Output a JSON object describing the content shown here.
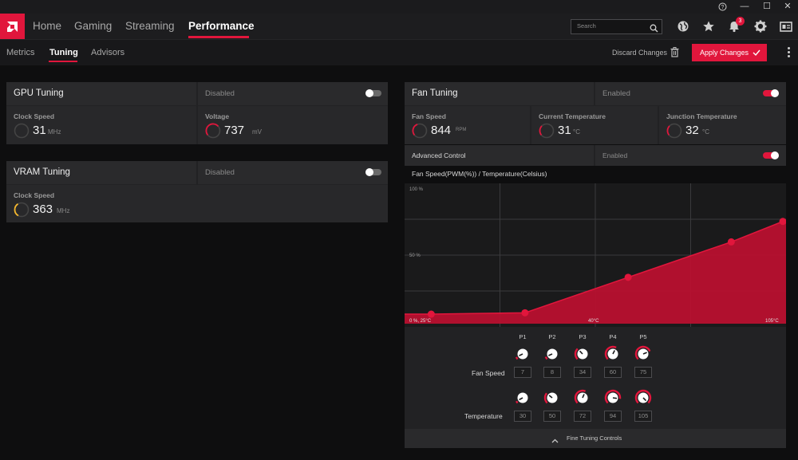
{
  "window": {
    "help_icon": "help-icon",
    "minimize": "—",
    "maximize": "☐",
    "close": "✕"
  },
  "nav": {
    "tabs": [
      {
        "label": "Home"
      },
      {
        "label": "Gaming"
      },
      {
        "label": "Streaming"
      },
      {
        "label": "Performance"
      }
    ],
    "search_placeholder": "Search",
    "notification_count": "3"
  },
  "subnav": {
    "tabs": [
      {
        "label": "Metrics"
      },
      {
        "label": "Tuning"
      },
      {
        "label": "Advisors"
      }
    ],
    "discard_label": "Discard Changes",
    "apply_label": "Apply Changes"
  },
  "gpu_tuning": {
    "title": "GPU Tuning",
    "status": "Disabled",
    "clock_label": "Clock Speed",
    "clock_value": "31",
    "clock_unit": "MHz",
    "voltage_label": "Voltage",
    "voltage_value": "737",
    "voltage_unit": "mV"
  },
  "vram_tuning": {
    "title": "VRAM Tuning",
    "status": "Disabled",
    "clock_label": "Clock Speed",
    "clock_value": "363",
    "clock_unit": "MHz"
  },
  "fan_tuning": {
    "title": "Fan Tuning",
    "status": "Enabled",
    "fan_speed_label": "Fan Speed",
    "fan_speed_value": "844",
    "fan_speed_unit": "RPM",
    "current_temp_label": "Current Temperature",
    "current_temp_value": "31",
    "current_temp_unit": "°C",
    "junction_temp_label": "Junction Temperature",
    "junction_temp_value": "32",
    "junction_temp_unit": "°C",
    "advanced_label": "Advanced Control",
    "advanced_status": "Enabled",
    "chart_title": "Fan Speed(PWM(%)) / Temperature(Celsius)",
    "fan_speed_row_label": "Fan Speed",
    "temperature_row_label": "Temperature",
    "fine_tuning_label": "Fine Tuning Controls"
  },
  "chart_data": {
    "type": "area",
    "title": "Fan Speed(PWM(%)) / Temperature(Celsius)",
    "x_tick_labels": [
      "0 %, 25°C",
      "40°C",
      "105°C"
    ],
    "y_tick_labels": [
      "100 %",
      "50 %"
    ],
    "xlim": [
      25,
      105
    ],
    "ylim": [
      0,
      100
    ],
    "grid": true,
    "series": [
      {
        "x": [
          30,
          50,
          72,
          94,
          105
        ],
        "values": [
          7,
          8,
          34,
          60,
          75
        ]
      }
    ],
    "color": "#e1163c"
  },
  "points": [
    {
      "label": "P1",
      "fan": "7",
      "temp": "30"
    },
    {
      "label": "P2",
      "fan": "8",
      "temp": "50"
    },
    {
      "label": "P3",
      "fan": "34",
      "temp": "72"
    },
    {
      "label": "P4",
      "fan": "60",
      "temp": "94"
    },
    {
      "label": "P5",
      "fan": "75",
      "temp": "105"
    }
  ],
  "colors": {
    "accent": "#e1163c",
    "gauge_yellow": "#f5b82e"
  }
}
